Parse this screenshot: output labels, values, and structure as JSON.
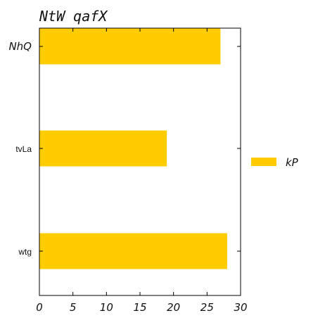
{
  "chart_data": {
    "type": "bar",
    "orientation": "horizontal",
    "title": "NtW qafX",
    "categories": [
      "NhQ",
      "tvLa",
      "wtg"
    ],
    "series": [
      {
        "name": "kP",
        "values": [
          27,
          19,
          28
        ]
      }
    ],
    "xlim": [
      0,
      30
    ],
    "x_ticks": [
      "0",
      "5",
      "10",
      "15",
      "20",
      "25",
      "30"
    ],
    "xlabel": "",
    "ylabel": "",
    "grid": false,
    "legend": "right",
    "colors": {
      "bar": "#FFCC00",
      "axis": "#000000"
    }
  }
}
